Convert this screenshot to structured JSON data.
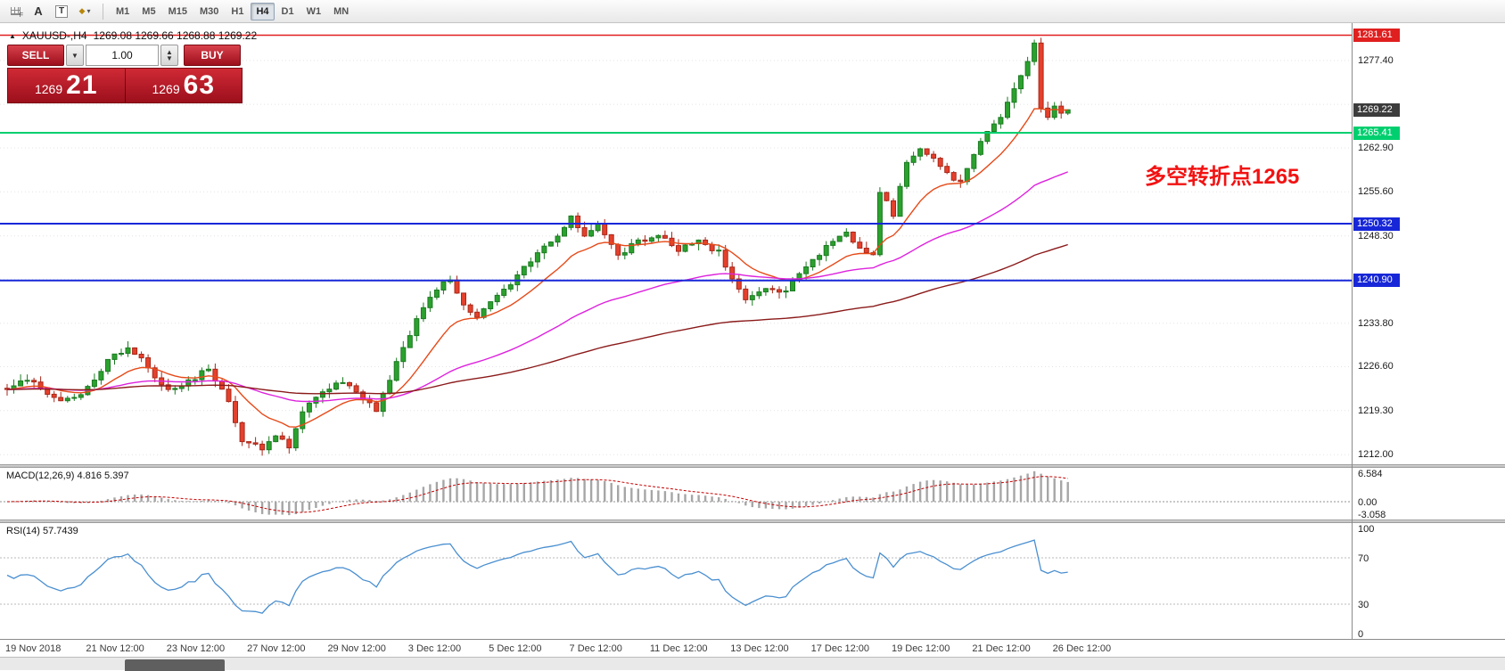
{
  "window": {
    "title": "XAUUSD-,H4"
  },
  "toolbar": {
    "icon_f_sub": "F",
    "icon_a": "A",
    "icon_t": "T",
    "shapes_glyph": "◆",
    "caret_glyph": "▾",
    "timeframes": [
      "M1",
      "M5",
      "M15",
      "M30",
      "H1",
      "H4",
      "D1",
      "W1",
      "MN"
    ],
    "active_timeframe": "H4"
  },
  "chart": {
    "marker": "▲",
    "header_symbol": "XAUUSD-,H4",
    "header_ohlc": "1269.08 1269.66 1268.88 1269.22"
  },
  "trade_panel": {
    "sell_label": "SELL",
    "buy_label": "BUY",
    "lot_value": "1.00",
    "panel_color": "#bf1f2c",
    "bid": {
      "big_figure": "1269",
      "pips": "21"
    },
    "ask": {
      "big_figure": "1269",
      "pips": "63"
    }
  },
  "annotation": {
    "text": "多空转折点1265",
    "color": "#f21212"
  },
  "price_scale": {
    "ticks": [
      {
        "price": 1277.4,
        "text": "1277.40"
      },
      {
        "price": 1262.9,
        "text": "1262.90"
      },
      {
        "price": 1255.6,
        "text": "1255.60"
      },
      {
        "price": 1248.3,
        "text": "1248.30"
      },
      {
        "price": 1233.8,
        "text": "1233.80"
      },
      {
        "price": 1226.6,
        "text": "1226.60"
      },
      {
        "price": 1219.3,
        "text": "1219.30"
      },
      {
        "price": 1212.0,
        "text": "1212.00"
      }
    ],
    "grid": [
      1277.4,
      1270.13,
      1262.9,
      1255.6,
      1248.3,
      1241.07,
      1233.8,
      1226.6,
      1219.3,
      1212.0
    ],
    "tags": [
      {
        "price": 1281.61,
        "text": "1281.61",
        "bg": "#e01f1f",
        "fg": "#ffffff"
      },
      {
        "price": 1269.22,
        "text": "1269.22",
        "bg": "#3c3c3c",
        "fg": "#ffffff"
      },
      {
        "price": 1265.41,
        "text": "1265.41",
        "bg": "#00cf6f",
        "fg": "#ffffff"
      },
      {
        "price": 1250.32,
        "text": "1250.32",
        "bg": "#1727d8",
        "fg": "#ffffff"
      },
      {
        "price": 1240.9,
        "text": "1240.90",
        "bg": "#1727d8",
        "fg": "#ffffff"
      }
    ]
  },
  "macd": {
    "label": "MACD(12,26,9) 4.816 5.397",
    "scale": [
      {
        "v": 6.584,
        "text": "6.584"
      },
      {
        "v": 0,
        "text": "0.00"
      },
      {
        "v": -3.058,
        "text": "-3.058"
      }
    ]
  },
  "rsi": {
    "label": "RSI(14) 57.7439",
    "scale": [
      {
        "v": 100,
        "text": "100"
      },
      {
        "v": 70,
        "text": "70"
      },
      {
        "v": 30,
        "text": "30"
      },
      {
        "v": 0,
        "text": "0"
      }
    ],
    "levels": [
      70,
      30
    ]
  },
  "time_axis": {
    "labels": [
      {
        "bar": 0,
        "text": "19 Nov 2018"
      },
      {
        "bar": 12,
        "text": "21 Nov 12:00"
      },
      {
        "bar": 24,
        "text": "23 Nov 12:00"
      },
      {
        "bar": 36,
        "text": "27 Nov 12:00"
      },
      {
        "bar": 48,
        "text": "29 Nov 12:00"
      },
      {
        "bar": 60,
        "text": "3 Dec 12:00"
      },
      {
        "bar": 72,
        "text": "5 Dec 12:00"
      },
      {
        "bar": 84,
        "text": "7 Dec 12:00"
      },
      {
        "bar": 96,
        "text": "11 Dec 12:00"
      },
      {
        "bar": 108,
        "text": "13 Dec 12:00"
      },
      {
        "bar": 120,
        "text": "17 Dec 12:00"
      },
      {
        "bar": 132,
        "text": "19 Dec 12:00"
      },
      {
        "bar": 144,
        "text": "21 Dec 12:00"
      },
      {
        "bar": 156,
        "text": "26 Dec 12:00"
      }
    ]
  },
  "chart_data": {
    "type": "candlestick",
    "symbol": "XAUUSD-",
    "timeframe": "H4",
    "ohlc_display": {
      "open": "1269.08",
      "high": "1269.66",
      "low": "1268.88",
      "close": "1269.22"
    },
    "last_close": 1269.22,
    "ylim": [
      1210.4,
      1283.6
    ],
    "bar_count": 159,
    "x0": 8,
    "dx": 7.53,
    "seed": 91,
    "noise": 0.9,
    "wick": 1.1,
    "anchor_closes": [
      [
        0,
        1222.5
      ],
      [
        3,
        1224.5
      ],
      [
        6,
        1222.0
      ],
      [
        9,
        1221.0
      ],
      [
        12,
        1223.0
      ],
      [
        15,
        1227.5
      ],
      [
        18,
        1230.0
      ],
      [
        21,
        1226.5
      ],
      [
        24,
        1222.5
      ],
      [
        27,
        1224.0
      ],
      [
        30,
        1226.5
      ],
      [
        33,
        1220.5
      ],
      [
        35,
        1214.5
      ],
      [
        38,
        1213.0
      ],
      [
        40,
        1215.5
      ],
      [
        42,
        1213.5
      ],
      [
        44,
        1219.0
      ],
      [
        47,
        1222.5
      ],
      [
        50,
        1224.0
      ],
      [
        53,
        1221.5
      ],
      [
        55,
        1219.5
      ],
      [
        58,
        1227.0
      ],
      [
        61,
        1234.5
      ],
      [
        64,
        1239.5
      ],
      [
        66,
        1241.0
      ],
      [
        68,
        1236.5
      ],
      [
        70,
        1234.5
      ],
      [
        73,
        1238.5
      ],
      [
        76,
        1241.5
      ],
      [
        79,
        1245.5
      ],
      [
        82,
        1248.0
      ],
      [
        84,
        1251.5
      ],
      [
        86,
        1248.5
      ],
      [
        88,
        1250.0
      ],
      [
        91,
        1245.0
      ],
      [
        94,
        1247.5
      ],
      [
        97,
        1248.5
      ],
      [
        100,
        1246.0
      ],
      [
        103,
        1247.5
      ],
      [
        106,
        1245.5
      ],
      [
        108,
        1241.0
      ],
      [
        110,
        1237.5
      ],
      [
        113,
        1240.0
      ],
      [
        116,
        1239.0
      ],
      [
        119,
        1243.5
      ],
      [
        122,
        1246.5
      ],
      [
        125,
        1248.5
      ],
      [
        127,
        1246.0
      ],
      [
        129,
        1245.5
      ],
      [
        130,
        1255.5
      ],
      [
        132,
        1252.0
      ],
      [
        134,
        1260.5
      ],
      [
        136,
        1262.5
      ],
      [
        138,
        1261.5
      ],
      [
        140,
        1258.5
      ],
      [
        142,
        1257.0
      ],
      [
        144,
        1262.0
      ],
      [
        146,
        1265.5
      ],
      [
        148,
        1268.0
      ],
      [
        150,
        1272.5
      ],
      [
        152,
        1277.5
      ],
      [
        153,
        1280.3
      ],
      [
        154,
        1269.5
      ],
      [
        155,
        1268.0
      ],
      [
        156,
        1269.5
      ],
      [
        157,
        1268.6
      ],
      [
        158,
        1269.22
      ]
    ],
    "pinned_closes": [
      [
        38,
        1212.8
      ],
      [
        84,
        1251.6
      ],
      [
        130,
        1255.5
      ],
      [
        153,
        1280.3
      ],
      [
        154,
        1269.5
      ],
      [
        158,
        1269.22
      ]
    ],
    "moving_averages": [
      {
        "period": 13,
        "color": "#e64a19"
      },
      {
        "period": 50,
        "color": "#dd22dd"
      },
      {
        "period": 130,
        "color": "#8b1a1a"
      }
    ],
    "macd_range": [
      -3.9,
      7.4
    ],
    "rsi_period": 14,
    "colors": {
      "up_fill": "#2ba12e",
      "up_stroke": "#1c7a22",
      "down_fill": "#e5402c",
      "down_stroke": "#a8281a",
      "grid": "#e4e4e4",
      "macd_hist": "#a6a6a6",
      "macd_signal": "#c40000",
      "rsi_line": "#4a8fd0",
      "rsi_level": "#b8b8b8"
    },
    "levels": [
      {
        "price": 1281.61,
        "color": "#e01f1f",
        "width": 1.6
      },
      {
        "price": 1265.41,
        "color": "#00cf6f",
        "width": 2
      },
      {
        "price": 1250.32,
        "color": "#1727d8",
        "width": 2
      },
      {
        "price": 1240.9,
        "color": "#1727d8",
        "width": 2
      }
    ]
  }
}
